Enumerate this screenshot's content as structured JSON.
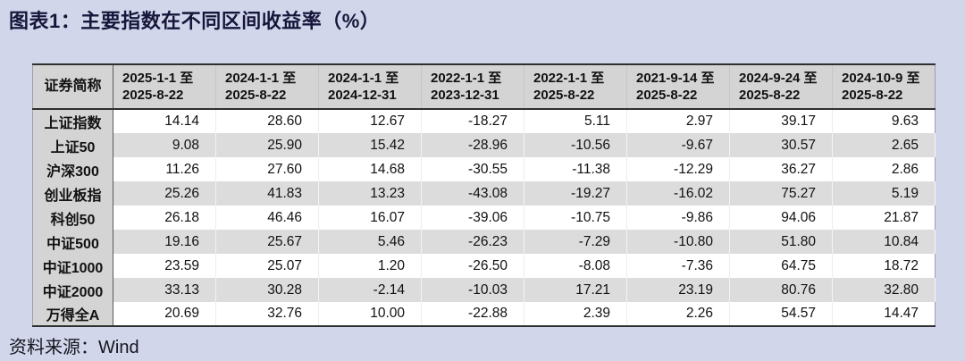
{
  "page": {
    "title": "图表1：主要指数在不同区间收益率（%）",
    "source": "资料来源：Wind"
  },
  "chart_data": {
    "type": "table",
    "title": "主要指数在不同区间收益率（%）",
    "name_column_header": "证券简称",
    "period_headers": [
      "2025-1-1 至\n2025-8-22",
      "2024-1-1 至\n2025-8-22",
      "2024-1-1 至\n2024-12-31",
      "2022-1-1 至\n2023-12-31",
      "2022-1-1 至\n2025-8-22",
      "2021-9-14 至\n2025-8-22",
      "2024-9-24 至\n2025-8-22",
      "2024-10-9 至\n2025-8-22"
    ],
    "rows": [
      {
        "name": "上证指数",
        "values": [
          "14.14",
          "28.60",
          "12.67",
          "-18.27",
          "5.11",
          "2.97",
          "39.17",
          "9.63"
        ]
      },
      {
        "name": "上证50",
        "values": [
          "9.08",
          "25.90",
          "15.42",
          "-28.96",
          "-10.56",
          "-9.67",
          "30.57",
          "2.65"
        ]
      },
      {
        "name": "沪深300",
        "values": [
          "11.26",
          "27.60",
          "14.68",
          "-30.55",
          "-11.38",
          "-12.29",
          "36.27",
          "2.86"
        ]
      },
      {
        "name": "创业板指",
        "values": [
          "25.26",
          "41.83",
          "13.23",
          "-43.08",
          "-19.27",
          "-16.02",
          "75.27",
          "5.19"
        ]
      },
      {
        "name": "科创50",
        "values": [
          "26.18",
          "46.46",
          "16.07",
          "-39.06",
          "-10.75",
          "-9.86",
          "94.06",
          "21.87"
        ]
      },
      {
        "name": "中证500",
        "values": [
          "19.16",
          "25.67",
          "5.46",
          "-26.23",
          "-7.29",
          "-10.80",
          "51.80",
          "10.84"
        ]
      },
      {
        "name": "中证1000",
        "values": [
          "23.59",
          "25.07",
          "1.20",
          "-26.50",
          "-8.08",
          "-7.36",
          "64.75",
          "18.72"
        ]
      },
      {
        "name": "中证2000",
        "values": [
          "33.13",
          "30.28",
          "-2.14",
          "-10.03",
          "17.21",
          "23.19",
          "80.76",
          "32.80"
        ]
      },
      {
        "name": "万得全A",
        "values": [
          "20.69",
          "32.76",
          "10.00",
          "-22.88",
          "2.39",
          "2.26",
          "54.57",
          "14.47"
        ]
      }
    ]
  },
  "colors": {
    "page_background": "#d1d6ea",
    "header_fill": "#d4d4d4",
    "stripe_fill": "#dcdcdc",
    "row_fill": "#ffffff",
    "border_dark": "#2f2f2f",
    "text": "#111111",
    "title_text": "#16163a"
  }
}
